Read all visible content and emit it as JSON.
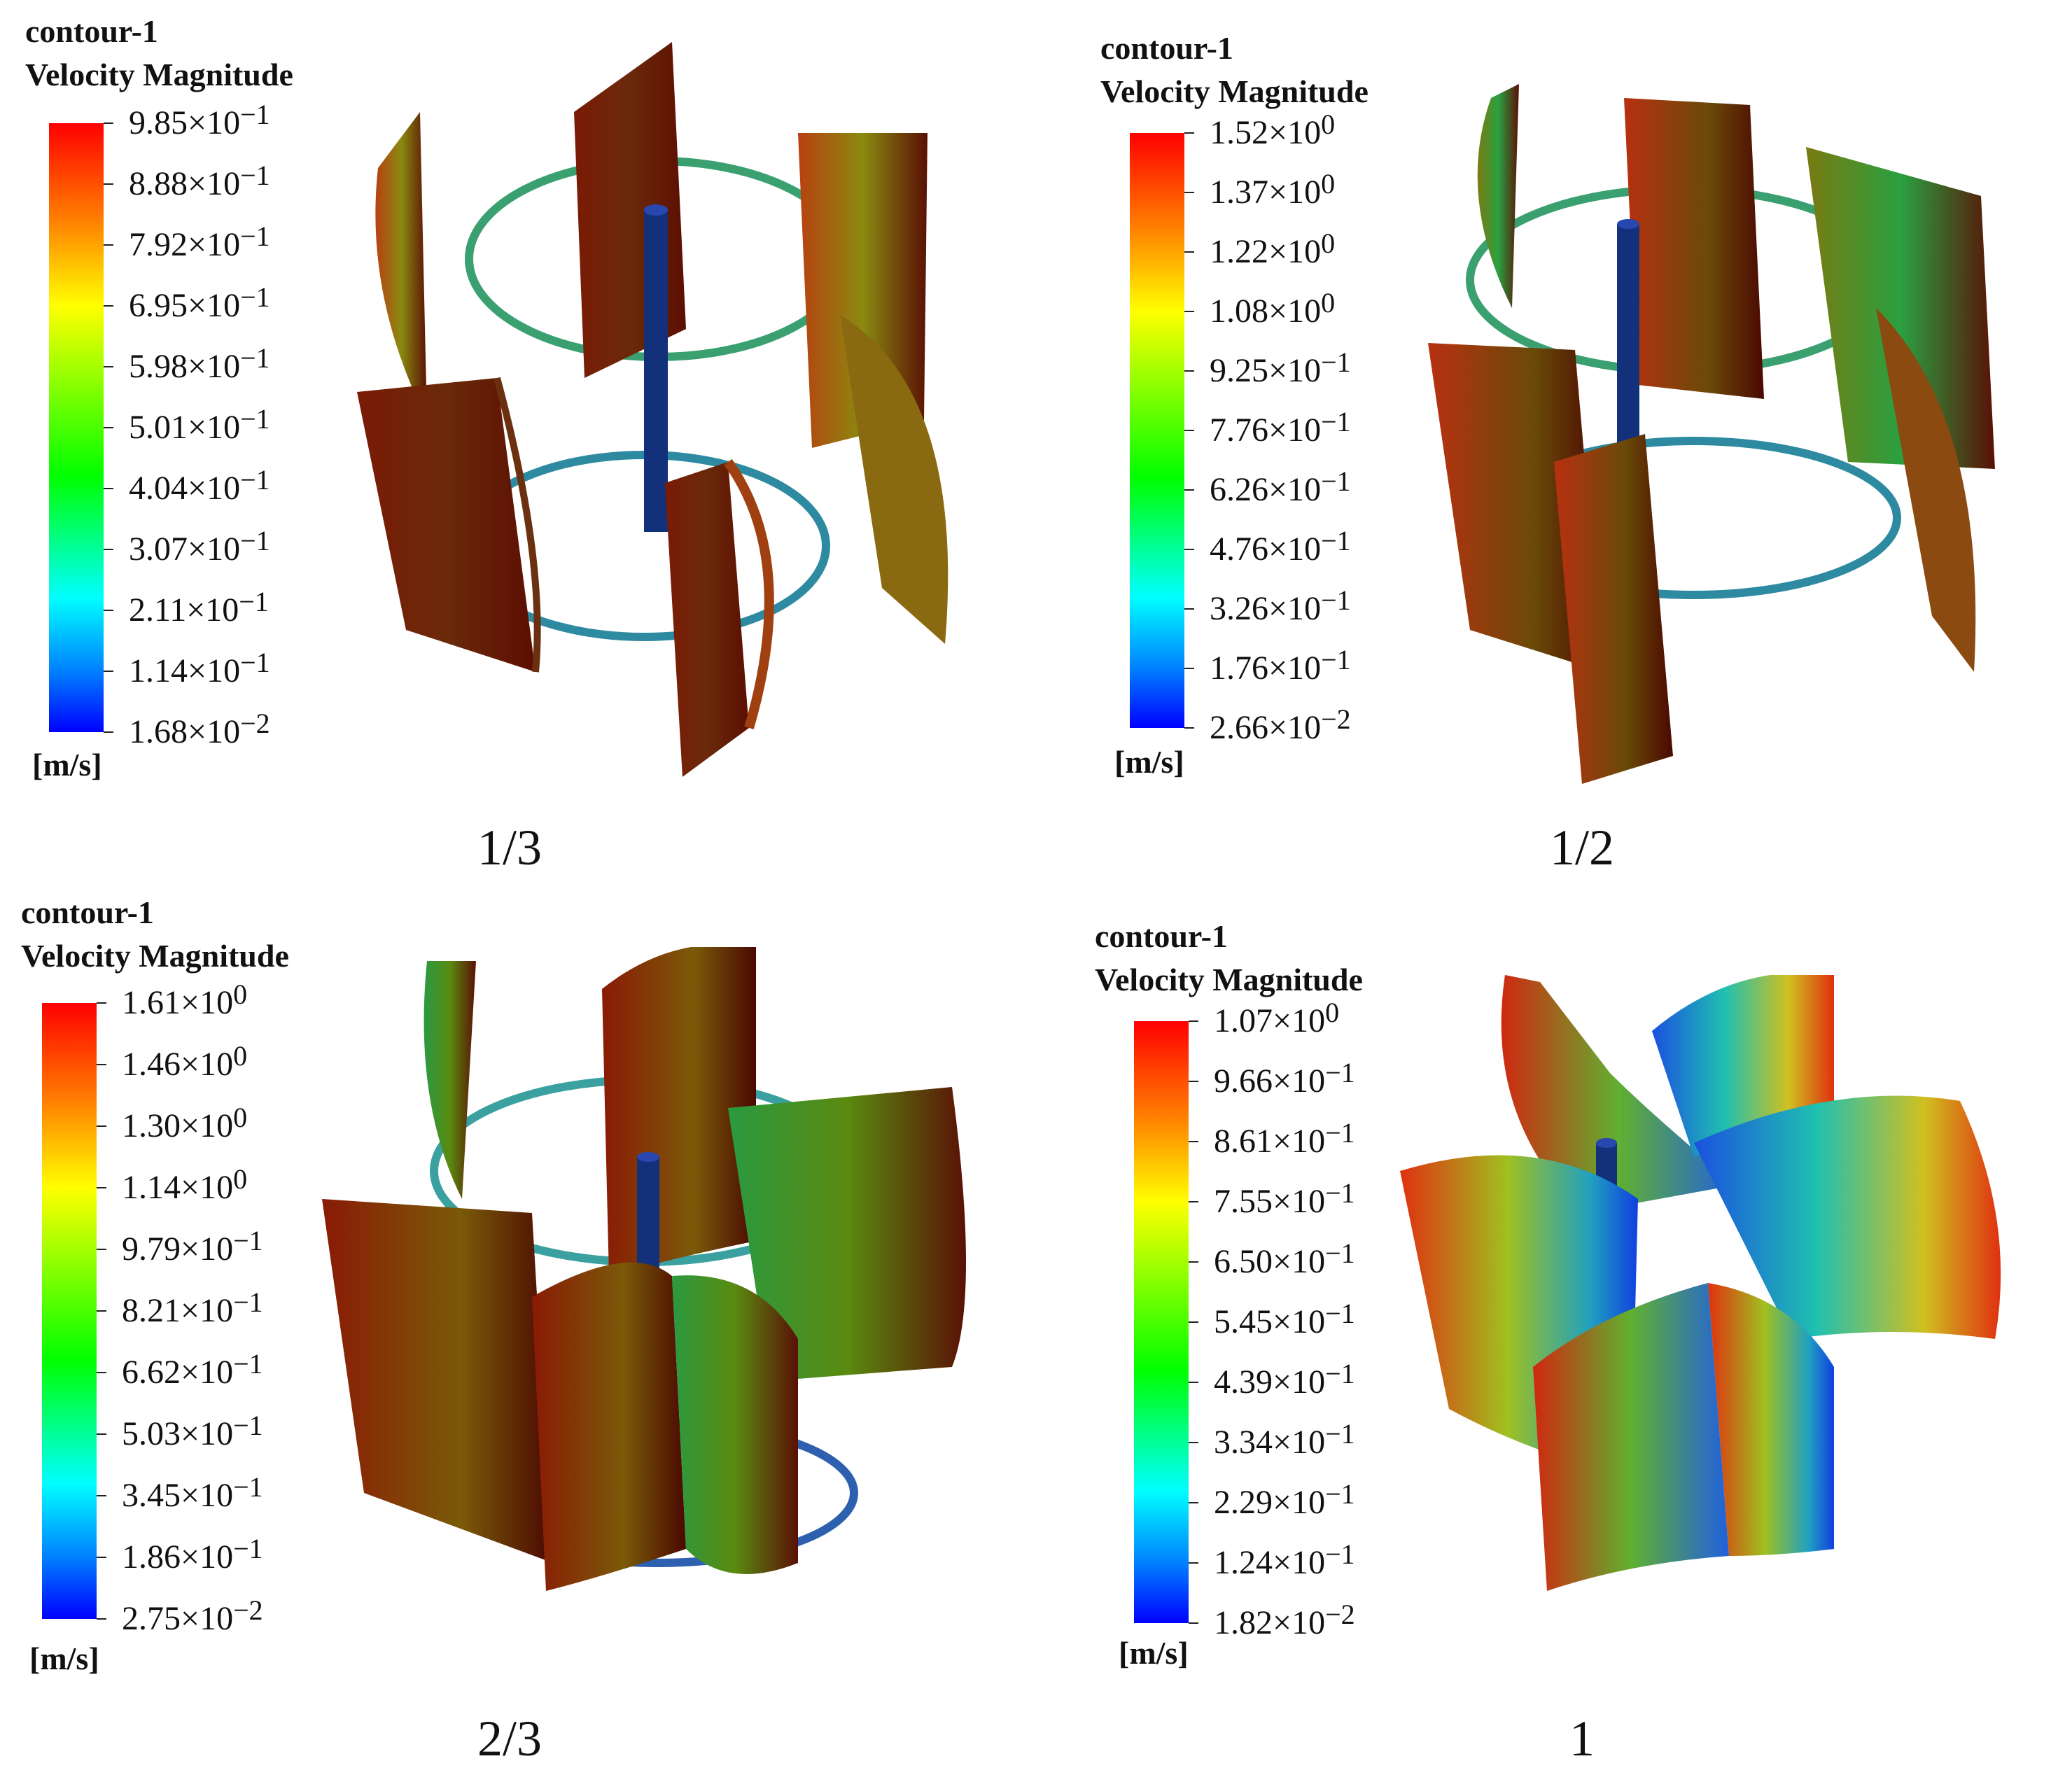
{
  "panels": [
    {
      "legend_title": "contour-1",
      "legend_subtitle": "Velocity Magnitude",
      "ticks": [
        {
          "mant": "9.85",
          "exp": "−1"
        },
        {
          "mant": "8.88",
          "exp": "−1"
        },
        {
          "mant": "7.92",
          "exp": "−1"
        },
        {
          "mant": "6.95",
          "exp": "−1"
        },
        {
          "mant": "5.98",
          "exp": "−1"
        },
        {
          "mant": "5.01",
          "exp": "−1"
        },
        {
          "mant": "4.04",
          "exp": "−1"
        },
        {
          "mant": "3.07",
          "exp": "−1"
        },
        {
          "mant": "2.11",
          "exp": "−1"
        },
        {
          "mant": "1.14",
          "exp": "−1"
        },
        {
          "mant": "1.68",
          "exp": "−2"
        }
      ],
      "unit": "[m/s]",
      "caption": "1/3"
    },
    {
      "legend_title": "contour-1",
      "legend_subtitle": "Velocity Magnitude",
      "ticks": [
        {
          "mant": "1.52",
          "exp": "0"
        },
        {
          "mant": "1.37",
          "exp": "0"
        },
        {
          "mant": "1.22",
          "exp": "0"
        },
        {
          "mant": "1.08",
          "exp": "0"
        },
        {
          "mant": "9.25",
          "exp": "−1"
        },
        {
          "mant": "7.76",
          "exp": "−1"
        },
        {
          "mant": "6.26",
          "exp": "−1"
        },
        {
          "mant": "4.76",
          "exp": "−1"
        },
        {
          "mant": "3.26",
          "exp": "−1"
        },
        {
          "mant": "1.76",
          "exp": "−1"
        },
        {
          "mant": "2.66",
          "exp": "−2"
        }
      ],
      "unit": "[m/s]",
      "caption": "1/2"
    },
    {
      "legend_title": "contour-1",
      "legend_subtitle": "Velocity Magnitude",
      "ticks": [
        {
          "mant": "1.61",
          "exp": "0"
        },
        {
          "mant": "1.46",
          "exp": "0"
        },
        {
          "mant": "1.30",
          "exp": "0"
        },
        {
          "mant": "1.14",
          "exp": "0"
        },
        {
          "mant": "9.79",
          "exp": "−1"
        },
        {
          "mant": "8.21",
          "exp": "−1"
        },
        {
          "mant": "6.62",
          "exp": "−1"
        },
        {
          "mant": "5.03",
          "exp": "−1"
        },
        {
          "mant": "3.45",
          "exp": "−1"
        },
        {
          "mant": "1.86",
          "exp": "−1"
        },
        {
          "mant": "2.75",
          "exp": "−2"
        }
      ],
      "unit": "[m/s]",
      "caption": "2/3"
    },
    {
      "legend_title": "contour-1",
      "legend_subtitle": "Velocity Magnitude",
      "ticks": [
        {
          "mant": "1.07",
          "exp": "0"
        },
        {
          "mant": "9.66",
          "exp": "−1"
        },
        {
          "mant": "8.61",
          "exp": "−1"
        },
        {
          "mant": "7.55",
          "exp": "−1"
        },
        {
          "mant": "6.50",
          "exp": "−1"
        },
        {
          "mant": "5.45",
          "exp": "−1"
        },
        {
          "mant": "4.39",
          "exp": "−1"
        },
        {
          "mant": "3.34",
          "exp": "−1"
        },
        {
          "mant": "2.29",
          "exp": "−1"
        },
        {
          "mant": "1.24",
          "exp": "−1"
        },
        {
          "mant": "1.82",
          "exp": "−2"
        }
      ],
      "unit": "[m/s]",
      "caption": "1"
    }
  ],
  "multiplication_sign": "×",
  "base": "10"
}
